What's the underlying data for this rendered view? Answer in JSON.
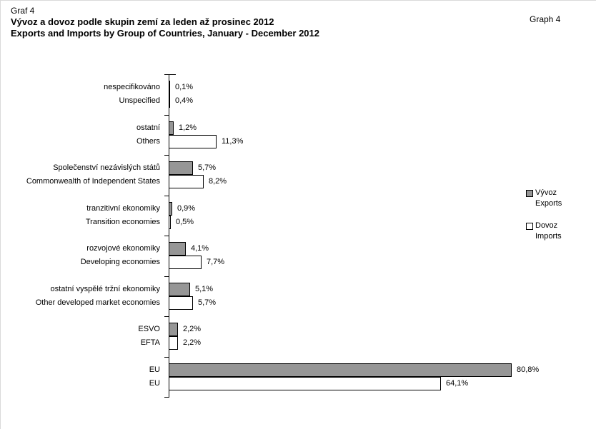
{
  "header": {
    "graf_label": "Graf 4",
    "title_cs": "Vývoz a dovoz podle skupin zemí za leden až prosinec 2012",
    "title_en": "Exports and Imports by Group of Countries, January - December 2012",
    "graph_label": "Graph 4"
  },
  "legend": {
    "items": [
      {
        "key": "vyvoz",
        "label_cs": "Vývoz",
        "label_en": "Exports",
        "color": "#969696"
      },
      {
        "key": "dovoz",
        "label_cs": "Dovoz",
        "label_en": "Imports",
        "color": "#ffffff"
      }
    ]
  },
  "chart_data": {
    "type": "bar",
    "orientation": "horizontal",
    "title": "Vývoz a dovoz podle skupin zemí za leden až prosinec 2012 / Exports and Imports by Group of Countries, January - December 2012",
    "unit": "%",
    "xlim": [
      0,
      85
    ],
    "grid": false,
    "legend_position": "right",
    "categories": [
      {
        "label_cs": "nespecifikováno",
        "label_en": "Unspecified"
      },
      {
        "label_cs": "ostatní",
        "label_en": "Others"
      },
      {
        "label_cs": "Společenství nezávislých států",
        "label_en": "Commonwealth of Independent States"
      },
      {
        "label_cs": "tranzitivní ekonomiky",
        "label_en": "Transition economies"
      },
      {
        "label_cs": "rozvojové ekonomiky",
        "label_en": "Developing economies"
      },
      {
        "label_cs": "ostatní vyspělé tržní ekonomiky",
        "label_en": "Other developed market economies"
      },
      {
        "label_cs": "ESVO",
        "label_en": "EFTA"
      },
      {
        "label_cs": "EU",
        "label_en": "EU"
      }
    ],
    "series": [
      {
        "name": "Vývoz / Exports",
        "key": "vyvoz",
        "color": "#969696",
        "values": [
          0.1,
          1.2,
          5.7,
          0.9,
          4.1,
          5.1,
          2.2,
          80.8
        ],
        "labels": [
          "0,1%",
          "1,2%",
          "5,7%",
          "0,9%",
          "4,1%",
          "5,1%",
          "2,2%",
          "80,8%"
        ]
      },
      {
        "name": "Dovoz / Imports",
        "key": "dovoz",
        "color": "#ffffff",
        "values": [
          0.4,
          11.3,
          8.2,
          0.5,
          7.7,
          5.7,
          2.2,
          64.1
        ],
        "labels": [
          "0,4%",
          "11,3%",
          "8,2%",
          "0,5%",
          "7,7%",
          "5,7%",
          "2,2%",
          "64,1%"
        ]
      }
    ]
  }
}
